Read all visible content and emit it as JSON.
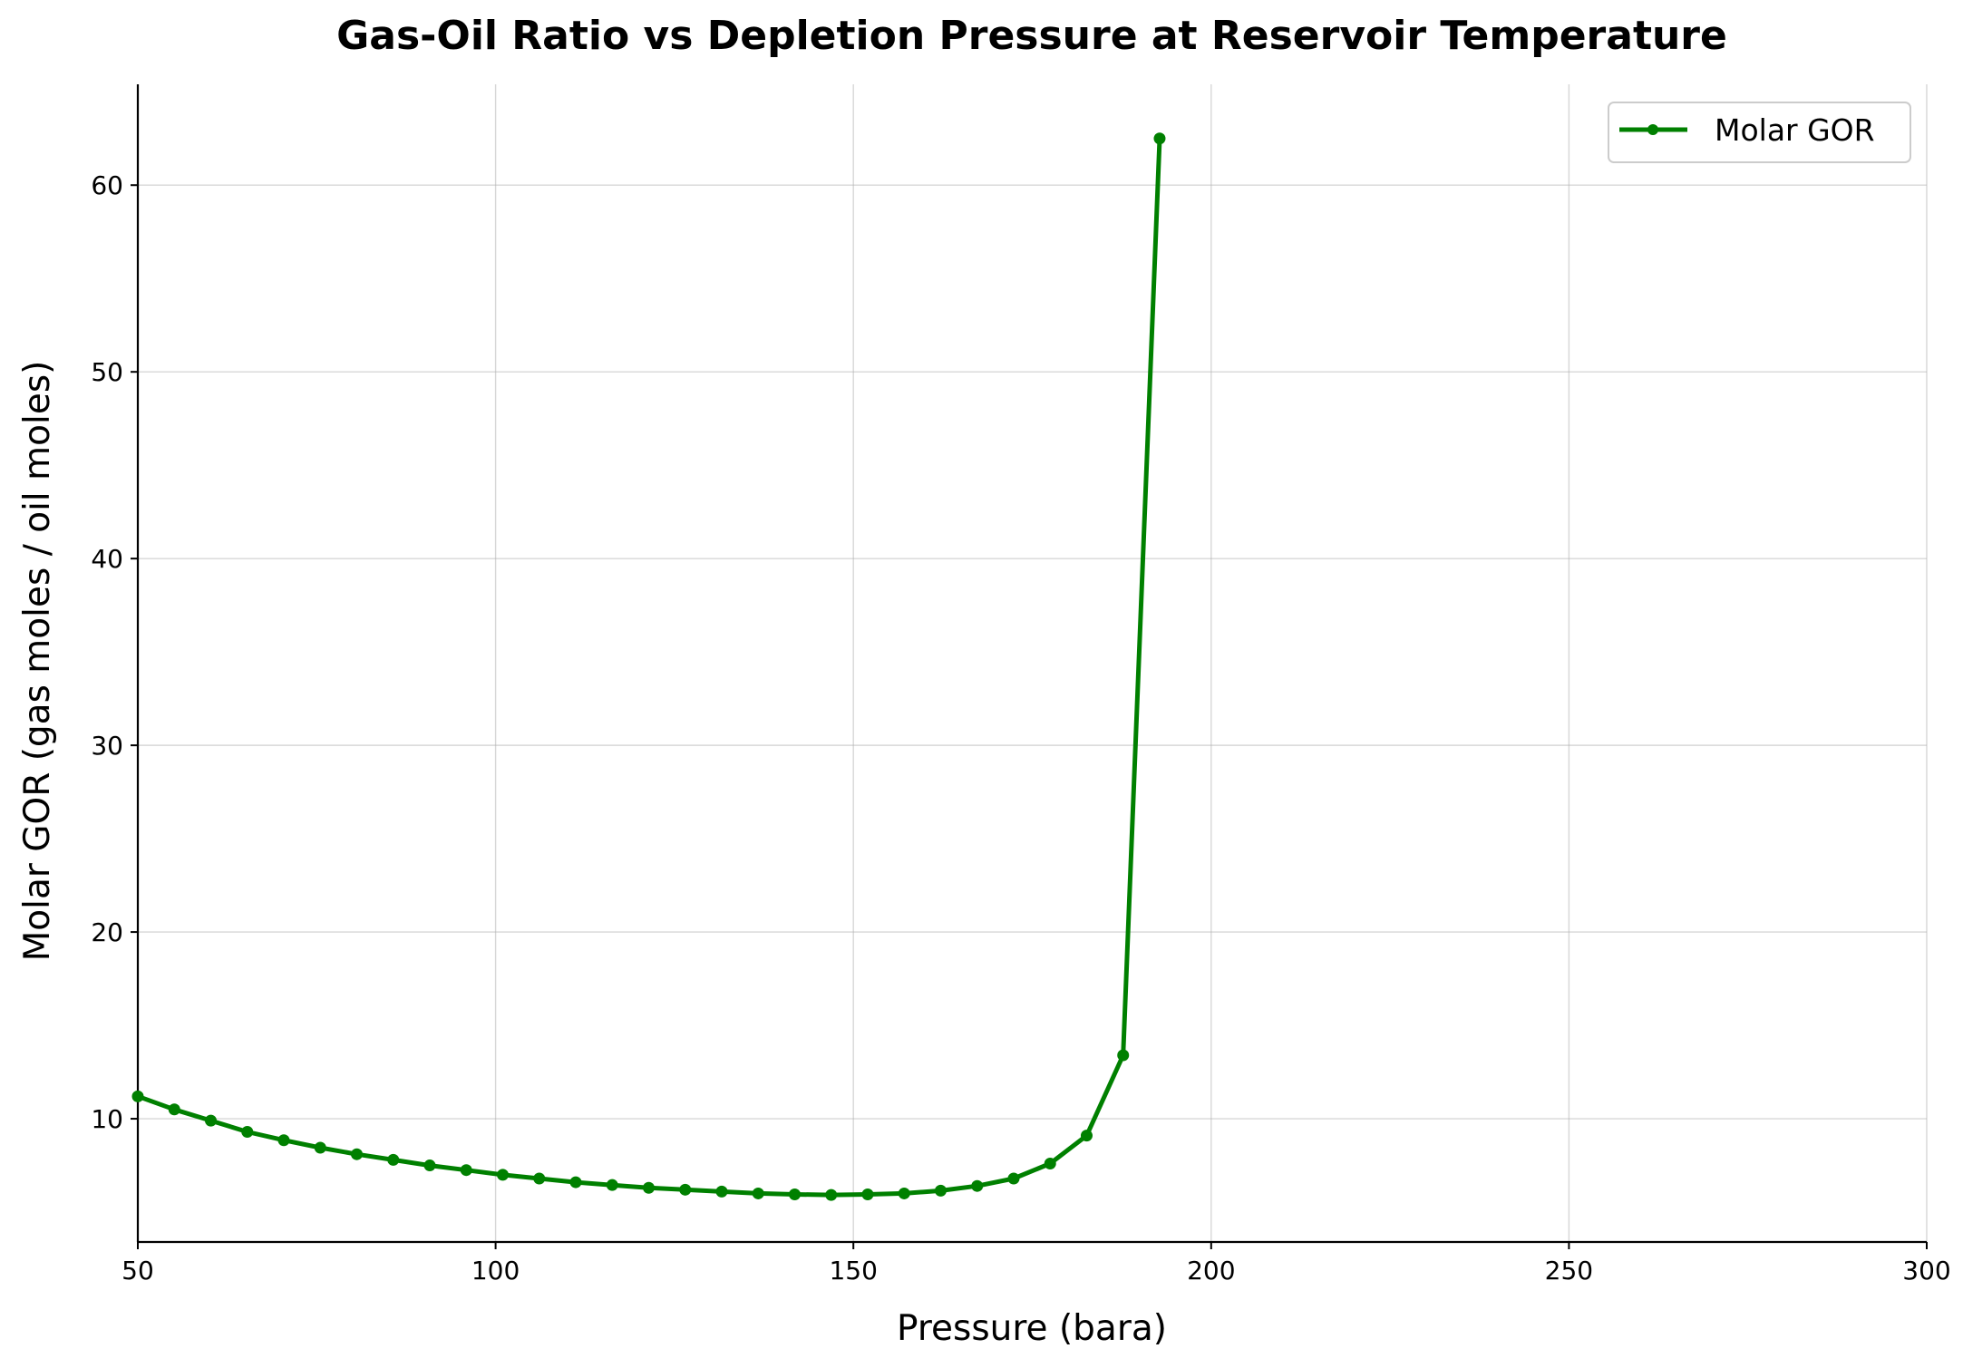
{
  "chart_data": {
    "type": "line",
    "title": "Gas-Oil Ratio vs Depletion Pressure at Reservoir Temperature",
    "xlabel": "Pressure (bara)",
    "ylabel": "Molar GOR (gas moles / oil moles)",
    "xlim": [
      50,
      300
    ],
    "ylim": [
      3.4,
      65.4
    ],
    "xticks": [
      50,
      100,
      150,
      200,
      250,
      300
    ],
    "yticks": [
      10,
      20,
      30,
      40,
      50,
      60
    ],
    "grid": true,
    "legend_position": "top-right",
    "colors": {
      "series": "#008000",
      "axis": "#000000",
      "grid": "#b0b0b0"
    },
    "series": [
      {
        "name": "Molar GOR",
        "x": [
          50,
          55.1,
          60.2,
          65.3,
          70.4,
          75.5,
          80.6,
          85.7,
          90.8,
          95.9,
          101.0,
          106.1,
          111.2,
          116.3,
          121.4,
          126.5,
          131.6,
          136.7,
          141.8,
          146.9,
          152.0,
          157.1,
          162.2,
          167.3,
          172.4,
          177.5,
          182.6,
          187.7,
          192.8
        ],
        "values": [
          11.2,
          10.5,
          9.9,
          9.3,
          8.85,
          8.45,
          8.1,
          7.8,
          7.5,
          7.25,
          7.0,
          6.8,
          6.6,
          6.45,
          6.3,
          6.2,
          6.1,
          6.0,
          5.95,
          5.92,
          5.95,
          6.0,
          6.15,
          6.4,
          6.8,
          7.6,
          9.1,
          13.4,
          62.5
        ]
      }
    ]
  }
}
